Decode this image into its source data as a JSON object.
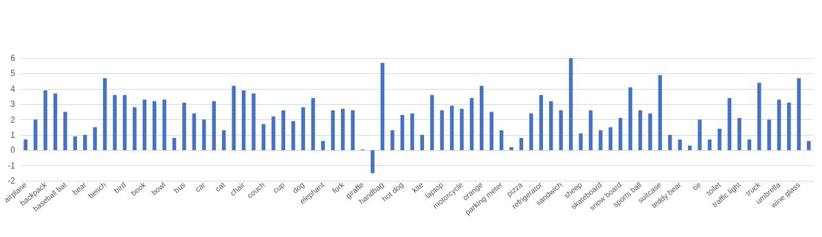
{
  "chart_data": {
    "type": "bar",
    "categories": [
      "airplane",
      null,
      "backpack",
      null,
      "baseball bat",
      null,
      "bear",
      null,
      "bench",
      null,
      "bird",
      null,
      "book",
      null,
      "bowl",
      null,
      "bus",
      null,
      "car",
      null,
      "cat",
      null,
      "chair",
      null,
      "couch",
      null,
      "cup",
      null,
      "dog",
      null,
      "elephant",
      null,
      "fork",
      null,
      "giraffe",
      null,
      "handbag",
      null,
      "hot dog",
      null,
      "kite",
      null,
      "laptop",
      null,
      "motorcycle",
      null,
      "orange",
      null,
      "parking meter",
      null,
      "pizza",
      null,
      "refrigerator",
      null,
      "sandwich",
      null,
      "sheep",
      null,
      "skateboard",
      null,
      "snow board",
      null,
      "sports ball",
      null,
      "suitcase",
      null,
      "teddy bear",
      null,
      "tie",
      null,
      "toilet",
      null,
      "traffic light",
      null,
      "truck",
      null,
      "umbrella",
      null,
      "wine glass",
      null
    ],
    "values": [
      0.7,
      2.0,
      3.9,
      3.7,
      2.5,
      0.9,
      1.0,
      1.5,
      4.7,
      3.6,
      3.6,
      2.8,
      3.3,
      3.2,
      3.3,
      0.8,
      3.1,
      2.4,
      2.0,
      3.2,
      1.3,
      4.2,
      3.9,
      3.7,
      1.7,
      2.2,
      2.6,
      1.9,
      2.8,
      3.4,
      0.6,
      2.6,
      2.7,
      2.6,
      0.05,
      -1.5,
      5.7,
      1.3,
      2.3,
      2.4,
      1.0,
      3.6,
      2.6,
      2.9,
      2.7,
      3.4,
      4.2,
      2.5,
      1.3,
      0.2,
      0.8,
      2.4,
      3.6,
      3.2,
      2.6,
      6.0,
      1.1,
      2.6,
      1.3,
      1.5,
      2.1,
      4.1,
      2.6,
      2.4,
      4.9,
      1.0,
      0.7,
      0.3,
      2.0,
      0.7,
      1.4,
      3.4,
      2.1,
      0.7,
      4.4,
      2.0,
      3.3,
      3.1,
      4.7,
      0.6
    ],
    "color": "#4472c4",
    "ylim": [
      -2,
      6
    ],
    "yticks": [
      -2,
      -1,
      0,
      1,
      2,
      3,
      4,
      5,
      6
    ],
    "grid": "y"
  }
}
